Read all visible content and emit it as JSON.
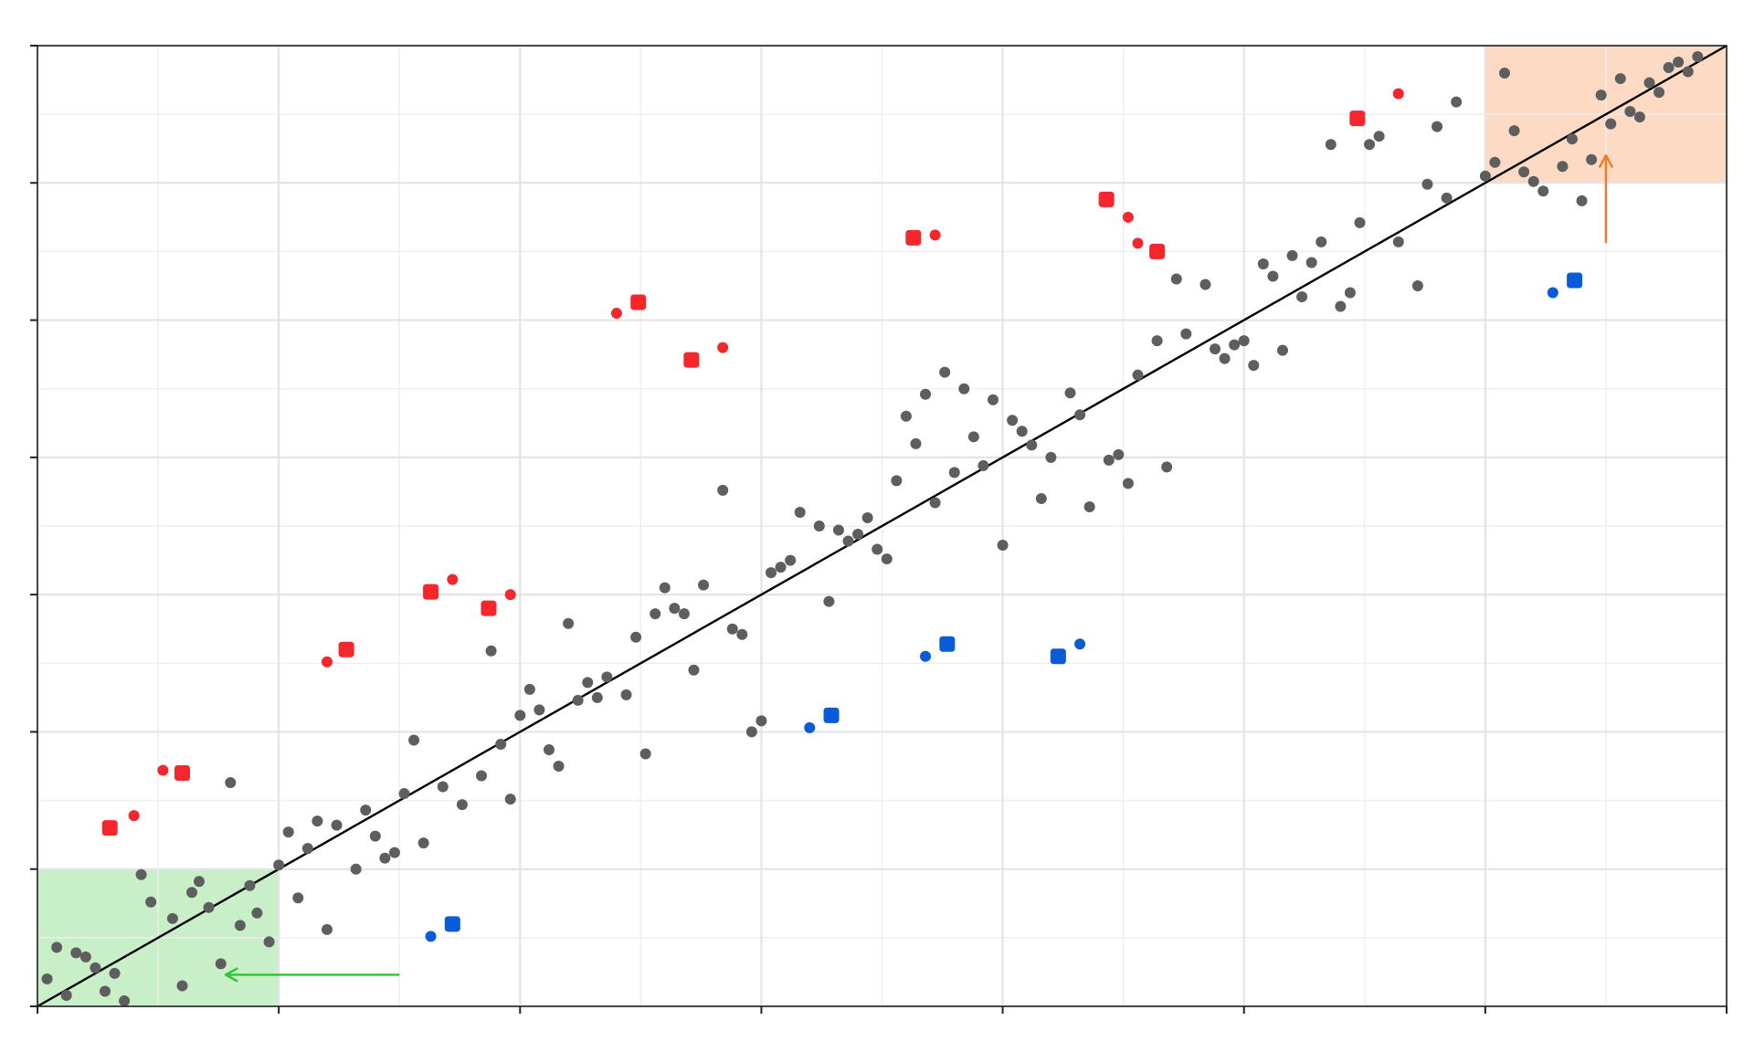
{
  "chart_data": {
    "type": "scatter",
    "title": "",
    "xlabel": "",
    "ylabel": "",
    "xlim": [
      0,
      7
    ],
    "ylim": [
      0,
      7
    ],
    "x_major_ticks": [
      0,
      1,
      2,
      3,
      4,
      5,
      6,
      7
    ],
    "y_major_ticks": [
      0,
      1,
      2,
      3,
      4,
      5,
      6,
      7
    ],
    "tick_labels_visible": false,
    "grid": true,
    "minor_grid": true,
    "reference_line": {
      "from": [
        0,
        0
      ],
      "to": [
        7,
        7
      ],
      "color": "#000000"
    },
    "regions": [
      {
        "name": "lower-left-region",
        "x": [
          0,
          1
        ],
        "y": [
          0,
          1
        ],
        "color": "#c8efc8"
      },
      {
        "name": "upper-right-region",
        "x": [
          6,
          7
        ],
        "y": [
          6,
          7
        ],
        "color": "#fcdac4"
      }
    ],
    "arrows": [
      {
        "name": "green-arrow",
        "from": [
          1.5,
          0.23
        ],
        "to": [
          0.78,
          0.23
        ],
        "color": "#33c233"
      },
      {
        "name": "orange-arrow",
        "from": [
          6.5,
          5.56
        ],
        "to": [
          6.5,
          6.2
        ],
        "color": "#f07a28"
      }
    ],
    "colors": {
      "gray": "#5e5e5e",
      "red": "#f5262c",
      "blue": "#0a5cd6",
      "line": "#000000"
    },
    "series": [
      {
        "marker": "circle",
        "color": "#5e5e5e",
        "points": [
          [
            0.04,
            0.2
          ],
          [
            0.08,
            0.43
          ],
          [
            0.12,
            0.08
          ],
          [
            0.16,
            0.39
          ],
          [
            0.2,
            0.36
          ],
          [
            0.24,
            0.28
          ],
          [
            0.28,
            0.11
          ],
          [
            0.32,
            0.24
          ],
          [
            0.36,
            0.04
          ],
          [
            0.43,
            0.96
          ],
          [
            0.47,
            0.76
          ],
          [
            0.56,
            0.64
          ],
          [
            0.6,
            0.15
          ],
          [
            0.64,
            0.83
          ],
          [
            0.67,
            0.91
          ],
          [
            0.71,
            0.72
          ],
          [
            0.76,
            0.31
          ],
          [
            0.8,
            1.63
          ],
          [
            0.84,
            0.59
          ],
          [
            0.88,
            0.88
          ],
          [
            0.91,
            0.68
          ],
          [
            0.96,
            0.47
          ],
          [
            1.0,
            1.03
          ],
          [
            1.04,
            1.27
          ],
          [
            1.08,
            0.79
          ],
          [
            1.12,
            1.15
          ],
          [
            1.16,
            1.35
          ],
          [
            1.2,
            0.56
          ],
          [
            1.24,
            1.32
          ],
          [
            1.32,
            1.0
          ],
          [
            1.36,
            1.43
          ],
          [
            1.4,
            1.24
          ],
          [
            1.44,
            1.08
          ],
          [
            1.48,
            1.12
          ],
          [
            1.52,
            1.55
          ],
          [
            1.56,
            1.94
          ],
          [
            1.6,
            1.19
          ],
          [
            1.68,
            1.6
          ],
          [
            1.76,
            1.47
          ],
          [
            1.84,
            1.68
          ],
          [
            1.88,
            2.59
          ],
          [
            1.92,
            1.91
          ],
          [
            1.96,
            1.51
          ],
          [
            2.0,
            2.12
          ],
          [
            2.04,
            2.31
          ],
          [
            2.08,
            2.16
          ],
          [
            2.12,
            1.87
          ],
          [
            2.16,
            1.75
          ],
          [
            2.2,
            2.79
          ],
          [
            2.24,
            2.23
          ],
          [
            2.28,
            2.36
          ],
          [
            2.32,
            2.25
          ],
          [
            2.36,
            2.4
          ],
          [
            2.44,
            2.27
          ],
          [
            2.48,
            2.69
          ],
          [
            2.52,
            1.84
          ],
          [
            2.56,
            2.86
          ],
          [
            2.6,
            3.05
          ],
          [
            2.64,
            2.9
          ],
          [
            2.68,
            2.86
          ],
          [
            2.72,
            2.45
          ],
          [
            2.76,
            3.07
          ],
          [
            2.84,
            3.76
          ],
          [
            2.88,
            2.75
          ],
          [
            2.92,
            2.71
          ],
          [
            2.96,
            2.0
          ],
          [
            3.0,
            2.08
          ],
          [
            3.04,
            3.16
          ],
          [
            3.08,
            3.2
          ],
          [
            3.12,
            3.25
          ],
          [
            3.16,
            3.6
          ],
          [
            3.24,
            3.5
          ],
          [
            3.28,
            2.95
          ],
          [
            3.32,
            3.47
          ],
          [
            3.36,
            3.39
          ],
          [
            3.4,
            3.44
          ],
          [
            3.44,
            3.56
          ],
          [
            3.48,
            3.33
          ],
          [
            3.52,
            3.26
          ],
          [
            3.56,
            3.83
          ],
          [
            3.6,
            4.3
          ],
          [
            3.64,
            4.1
          ],
          [
            3.68,
            4.46
          ],
          [
            3.72,
            3.67
          ],
          [
            3.76,
            4.62
          ],
          [
            3.8,
            3.89
          ],
          [
            3.84,
            4.5
          ],
          [
            3.88,
            4.15
          ],
          [
            3.92,
            3.94
          ],
          [
            3.96,
            4.42
          ],
          [
            4.0,
            3.36
          ],
          [
            4.04,
            4.27
          ],
          [
            4.08,
            4.19
          ],
          [
            4.12,
            4.09
          ],
          [
            4.16,
            3.7
          ],
          [
            4.2,
            4.0
          ],
          [
            4.28,
            4.47
          ],
          [
            4.32,
            4.31
          ],
          [
            4.36,
            3.64
          ],
          [
            4.44,
            3.98
          ],
          [
            4.48,
            4.02
          ],
          [
            4.52,
            3.81
          ],
          [
            4.56,
            4.6
          ],
          [
            4.64,
            4.85
          ],
          [
            4.68,
            3.93
          ],
          [
            4.72,
            5.3
          ],
          [
            4.76,
            4.9
          ],
          [
            4.84,
            5.26
          ],
          [
            4.88,
            4.79
          ],
          [
            4.92,
            4.72
          ],
          [
            4.96,
            4.82
          ],
          [
            5.0,
            4.85
          ],
          [
            5.04,
            4.67
          ],
          [
            5.08,
            5.41
          ],
          [
            5.12,
            5.32
          ],
          [
            5.16,
            4.78
          ],
          [
            5.2,
            5.47
          ],
          [
            5.24,
            5.17
          ],
          [
            5.28,
            5.42
          ],
          [
            5.32,
            5.57
          ],
          [
            5.36,
            6.28
          ],
          [
            5.4,
            5.1
          ],
          [
            5.44,
            5.2
          ],
          [
            5.48,
            5.71
          ],
          [
            5.52,
            6.28
          ],
          [
            5.56,
            6.34
          ],
          [
            5.64,
            5.57
          ],
          [
            5.72,
            5.25
          ],
          [
            5.76,
            5.99
          ],
          [
            5.8,
            6.41
          ],
          [
            5.84,
            5.89
          ],
          [
            5.88,
            6.59
          ],
          [
            6.0,
            6.05
          ],
          [
            6.04,
            6.15
          ],
          [
            6.08,
            6.8
          ],
          [
            6.12,
            6.38
          ],
          [
            6.16,
            6.08
          ],
          [
            6.2,
            6.01
          ],
          [
            6.24,
            5.94
          ],
          [
            6.32,
            6.12
          ],
          [
            6.36,
            6.32
          ],
          [
            6.4,
            5.87
          ],
          [
            6.44,
            6.17
          ],
          [
            6.48,
            6.64
          ],
          [
            6.52,
            6.43
          ],
          [
            6.56,
            6.76
          ],
          [
            6.6,
            6.52
          ],
          [
            6.64,
            6.48
          ],
          [
            6.68,
            6.73
          ],
          [
            6.72,
            6.66
          ],
          [
            6.76,
            6.84
          ],
          [
            6.8,
            6.88
          ],
          [
            6.84,
            6.81
          ],
          [
            6.88,
            6.92
          ]
        ]
      },
      {
        "marker": "circle",
        "color": "#f5262c",
        "points": [
          [
            0.4,
            1.39
          ],
          [
            0.52,
            1.72
          ],
          [
            1.2,
            2.51
          ],
          [
            1.72,
            3.11
          ],
          [
            1.96,
            3.0
          ],
          [
            2.4,
            5.05
          ],
          [
            2.84,
            4.8
          ],
          [
            3.72,
            5.62
          ],
          [
            4.52,
            5.75
          ],
          [
            4.56,
            5.56
          ],
          [
            5.64,
            6.65
          ]
        ]
      },
      {
        "marker": "square",
        "color": "#f5262c",
        "points": [
          [
            0.3,
            1.3
          ],
          [
            0.6,
            1.7
          ],
          [
            1.28,
            2.6
          ],
          [
            1.63,
            3.02
          ],
          [
            1.87,
            2.9
          ],
          [
            2.49,
            5.13
          ],
          [
            2.71,
            4.71
          ],
          [
            3.63,
            5.6
          ],
          [
            4.43,
            5.88
          ],
          [
            4.64,
            5.5
          ],
          [
            5.47,
            6.47
          ]
        ]
      },
      {
        "marker": "circle",
        "color": "#0a5cd6",
        "points": [
          [
            1.63,
            0.51
          ],
          [
            3.2,
            2.03
          ],
          [
            3.68,
            2.55
          ],
          [
            4.32,
            2.64
          ],
          [
            6.28,
            5.2
          ]
        ]
      },
      {
        "marker": "square",
        "color": "#0a5cd6",
        "points": [
          [
            1.72,
            0.6
          ],
          [
            3.29,
            2.12
          ],
          [
            3.77,
            2.64
          ],
          [
            4.23,
            2.55
          ],
          [
            6.37,
            5.29
          ]
        ]
      }
    ]
  }
}
